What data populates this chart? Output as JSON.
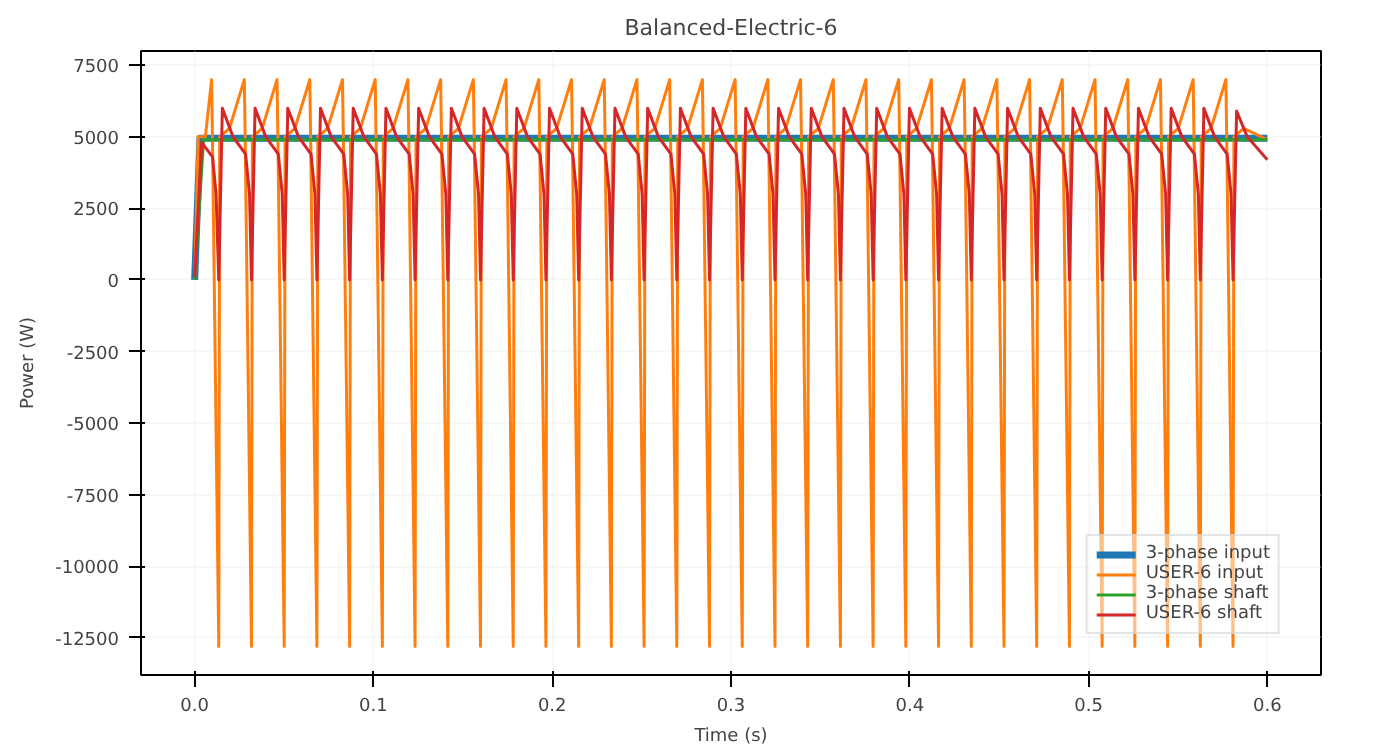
{
  "chart_data": {
    "type": "line",
    "title": "Balanced-Electric-6",
    "xlabel": "Time (s)",
    "ylabel": "Power (W)",
    "xlim": [
      -0.03,
      0.63
    ],
    "xticks": [
      {
        "value": 0,
        "label": "0.0"
      },
      0.1,
      0.2,
      0.3,
      0.4,
      0.5,
      0.6
    ],
    "ylim": [
      -13800,
      8000
    ],
    "yticks": [
      -12500,
      -10000,
      -7500,
      -5000,
      -2500,
      0,
      2500,
      5000,
      7500
    ],
    "grid": true,
    "legend": "bottom right",
    "line_style": "solid",
    "marker": "none",
    "series": [
      {
        "name": "3-phase input",
        "color": "#1f77b4",
        "x": [
          0,
          0.003,
          0.6
        ],
        "values": [
          0,
          4950,
          4950
        ]
      },
      {
        "name": "USER-6 input",
        "color": "#ff7f0e",
        "x": [
          0,
          0.002,
          0.006,
          0.0095,
          0.01,
          0.0135,
          0.014,
          0.0195,
          0.0278,
          0.0283,
          0.0318,
          0.0323,
          0.0378,
          0.0461,
          0.0466,
          0.0501,
          0.0506,
          0.0561,
          0.0644,
          0.0649,
          0.0684,
          0.0689,
          0.0744,
          0.0827,
          0.0832,
          0.0867,
          0.0872,
          0.0927,
          0.101,
          0.1015,
          0.105,
          0.1055,
          0.111,
          0.1193,
          0.1198,
          0.1233,
          0.1238,
          0.1293,
          0.1376,
          0.1381,
          0.1416,
          0.1421,
          0.1476,
          0.1559,
          0.1564,
          0.1599,
          0.1604,
          0.1659,
          0.1742,
          0.1747,
          0.1782,
          0.1787,
          0.1842,
          0.1925,
          0.193,
          0.1965,
          0.197,
          0.2025,
          0.2108,
          0.2113,
          0.2148,
          0.2153,
          0.2208,
          0.2291,
          0.2296,
          0.2331,
          0.2336,
          0.2391,
          0.2474,
          0.2479,
          0.2514,
          0.2519,
          0.2574,
          0.2657,
          0.2662,
          0.2697,
          0.2702,
          0.2757,
          0.284,
          0.2845,
          0.288,
          0.2885,
          0.294,
          0.3023,
          0.3028,
          0.3063,
          0.3068,
          0.3123,
          0.3206,
          0.3211,
          0.3246,
          0.3251,
          0.3306,
          0.3389,
          0.3394,
          0.3429,
          0.3434,
          0.3489,
          0.3572,
          0.3577,
          0.3612,
          0.3617,
          0.3672,
          0.3755,
          0.376,
          0.3795,
          0.38,
          0.3855,
          0.3938,
          0.3943,
          0.3978,
          0.3983,
          0.4038,
          0.4121,
          0.4126,
          0.4161,
          0.4166,
          0.4221,
          0.4304,
          0.4309,
          0.4344,
          0.4349,
          0.4404,
          0.4487,
          0.4492,
          0.4527,
          0.4532,
          0.4587,
          0.467,
          0.4675,
          0.471,
          0.4715,
          0.477,
          0.4853,
          0.4858,
          0.4893,
          0.4898,
          0.4953,
          0.5036,
          0.5041,
          0.5076,
          0.5081,
          0.5136,
          0.5219,
          0.5224,
          0.5259,
          0.5264,
          0.5319,
          0.5402,
          0.5407,
          0.5442,
          0.5447,
          0.5502,
          0.5585,
          0.559,
          0.5625,
          0.563,
          0.5685,
          0.5768,
          0.5773,
          0.5808,
          0.5813,
          0.5868,
          0.6
        ],
        "values": [
          0,
          5000,
          5000,
          7000,
          4800,
          -12800,
          5000,
          5300,
          7000,
          4800,
          -12800,
          5000,
          5300,
          7000,
          4800,
          -12800,
          5000,
          5300,
          7000,
          4800,
          -12800,
          5000,
          5300,
          7000,
          4800,
          -12800,
          5000,
          5300,
          7000,
          4800,
          -12800,
          5000,
          5300,
          7000,
          4800,
          -12800,
          5000,
          5300,
          7000,
          4800,
          -12800,
          5000,
          5300,
          7000,
          4800,
          -12800,
          5000,
          5300,
          7000,
          4800,
          -12800,
          5000,
          5300,
          7000,
          4800,
          -12800,
          5000,
          5300,
          7000,
          4800,
          -12800,
          5000,
          5300,
          7000,
          4800,
          -12800,
          5000,
          5300,
          7000,
          4800,
          -12800,
          5000,
          5300,
          7000,
          4800,
          -12800,
          5000,
          5300,
          7000,
          4800,
          -12800,
          5000,
          5300,
          7000,
          4800,
          -12800,
          5000,
          5300,
          7000,
          4800,
          -12800,
          5000,
          5300,
          7000,
          4800,
          -12800,
          5000,
          5300,
          7000,
          4800,
          -12800,
          5000,
          5300,
          7000,
          4800,
          -12800,
          5000,
          5300,
          7000,
          4800,
          -12800,
          5000,
          5300,
          7000,
          4800,
          -12800,
          5000,
          5300,
          7000,
          4800,
          -12800,
          5000,
          5300,
          7000,
          4800,
          -12800,
          5000,
          5300,
          7000,
          4800,
          -12800,
          5000,
          5300,
          7000,
          4800,
          -12800,
          5000,
          5300,
          7000,
          4800,
          -12800,
          5000,
          5300,
          7000,
          4800,
          -12800,
          5000,
          5300,
          7000,
          4800,
          -12800,
          5000,
          5300,
          7000,
          4800,
          -12800,
          5000,
          5300,
          7000,
          4800,
          -12800,
          5000,
          5300,
          4900
        ]
      },
      {
        "name": "3-phase shaft",
        "color": "#2ca02c",
        "x": [
          0,
          0.005,
          0.6
        ],
        "values": [
          0,
          4900,
          4900
        ]
      },
      {
        "name": "USER-6 shaft",
        "color": "#d62728",
        "x": [
          0,
          0.004,
          0.01,
          0.012,
          0.0135,
          0.0155,
          0.0215,
          0.0285,
          0.0307,
          0.0318,
          0.0338,
          0.0398,
          0.0468,
          0.049,
          0.0501,
          0.0521,
          0.0581,
          0.0651,
          0.0673,
          0.0684,
          0.0704,
          0.0764,
          0.0834,
          0.0856,
          0.0867,
          0.0887,
          0.0947,
          0.1017,
          0.1039,
          0.105,
          0.107,
          0.113,
          0.12,
          0.1222,
          0.1233,
          0.1253,
          0.1313,
          0.1383,
          0.1405,
          0.1416,
          0.1436,
          0.1496,
          0.1566,
          0.1588,
          0.1599,
          0.1619,
          0.1679,
          0.1749,
          0.1771,
          0.1782,
          0.1802,
          0.1862,
          0.1932,
          0.1954,
          0.1965,
          0.1985,
          0.2045,
          0.2115,
          0.2137,
          0.2148,
          0.2168,
          0.2228,
          0.2298,
          0.232,
          0.2331,
          0.2351,
          0.2411,
          0.2481,
          0.2503,
          0.2514,
          0.2534,
          0.2594,
          0.2664,
          0.2686,
          0.2697,
          0.2717,
          0.2777,
          0.2847,
          0.2869,
          0.288,
          0.29,
          0.296,
          0.303,
          0.3052,
          0.3063,
          0.3083,
          0.3143,
          0.3213,
          0.3235,
          0.3246,
          0.3266,
          0.3326,
          0.3396,
          0.3418,
          0.3429,
          0.3449,
          0.3509,
          0.3579,
          0.3601,
          0.3612,
          0.3632,
          0.3692,
          0.3762,
          0.3784,
          0.3795,
          0.3815,
          0.3875,
          0.3945,
          0.3967,
          0.3978,
          0.3998,
          0.4058,
          0.4128,
          0.415,
          0.4161,
          0.4181,
          0.4241,
          0.4311,
          0.4333,
          0.4344,
          0.4364,
          0.4424,
          0.4494,
          0.4516,
          0.4527,
          0.4547,
          0.4607,
          0.4677,
          0.4699,
          0.471,
          0.473,
          0.479,
          0.486,
          0.4882,
          0.4893,
          0.4913,
          0.4973,
          0.5043,
          0.5065,
          0.5076,
          0.5096,
          0.5156,
          0.5226,
          0.5248,
          0.5259,
          0.5279,
          0.5339,
          0.5409,
          0.5431,
          0.5442,
          0.5462,
          0.5522,
          0.5592,
          0.5614,
          0.5625,
          0.5645,
          0.5705,
          0.5775,
          0.5797,
          0.5808,
          0.5828,
          0.5888,
          0.6
        ],
        "values": [
          100,
          4800,
          4300,
          3000,
          0,
          6000,
          5000,
          4400,
          3000,
          0,
          6000,
          5000,
          4400,
          3000,
          0,
          6000,
          5000,
          4400,
          3000,
          0,
          6000,
          5000,
          4400,
          3000,
          0,
          6000,
          5000,
          4400,
          3000,
          0,
          6000,
          5000,
          4400,
          3000,
          0,
          6000,
          5000,
          4400,
          3000,
          0,
          6000,
          5000,
          4400,
          3000,
          0,
          6000,
          5000,
          4400,
          3000,
          0,
          6000,
          5000,
          4400,
          3000,
          0,
          6000,
          5000,
          4400,
          3000,
          0,
          6000,
          5000,
          4400,
          3000,
          0,
          6000,
          5000,
          4400,
          3000,
          0,
          6000,
          5000,
          4400,
          3000,
          0,
          6000,
          5000,
          4400,
          3000,
          0,
          6000,
          5000,
          4400,
          3000,
          0,
          6000,
          5000,
          4400,
          3000,
          0,
          6000,
          5000,
          4400,
          3000,
          0,
          6000,
          5000,
          4400,
          3000,
          0,
          6000,
          5000,
          4400,
          3000,
          0,
          6000,
          5000,
          4400,
          3000,
          0,
          6000,
          5000,
          4400,
          3000,
          0,
          6000,
          5000,
          4400,
          3000,
          0,
          6000,
          5000,
          4400,
          3000,
          0,
          6000,
          5000,
          4400,
          3000,
          0,
          6000,
          5000,
          4400,
          3000,
          0,
          6000,
          5000,
          4400,
          3000,
          0,
          6000,
          5000,
          4400,
          3000,
          0,
          6000,
          5000,
          4400,
          3000,
          0,
          6000,
          5000,
          4400,
          3000,
          0,
          6000,
          5000,
          4400,
          3000,
          0,
          5900,
          5000,
          4200
        ]
      }
    ]
  }
}
